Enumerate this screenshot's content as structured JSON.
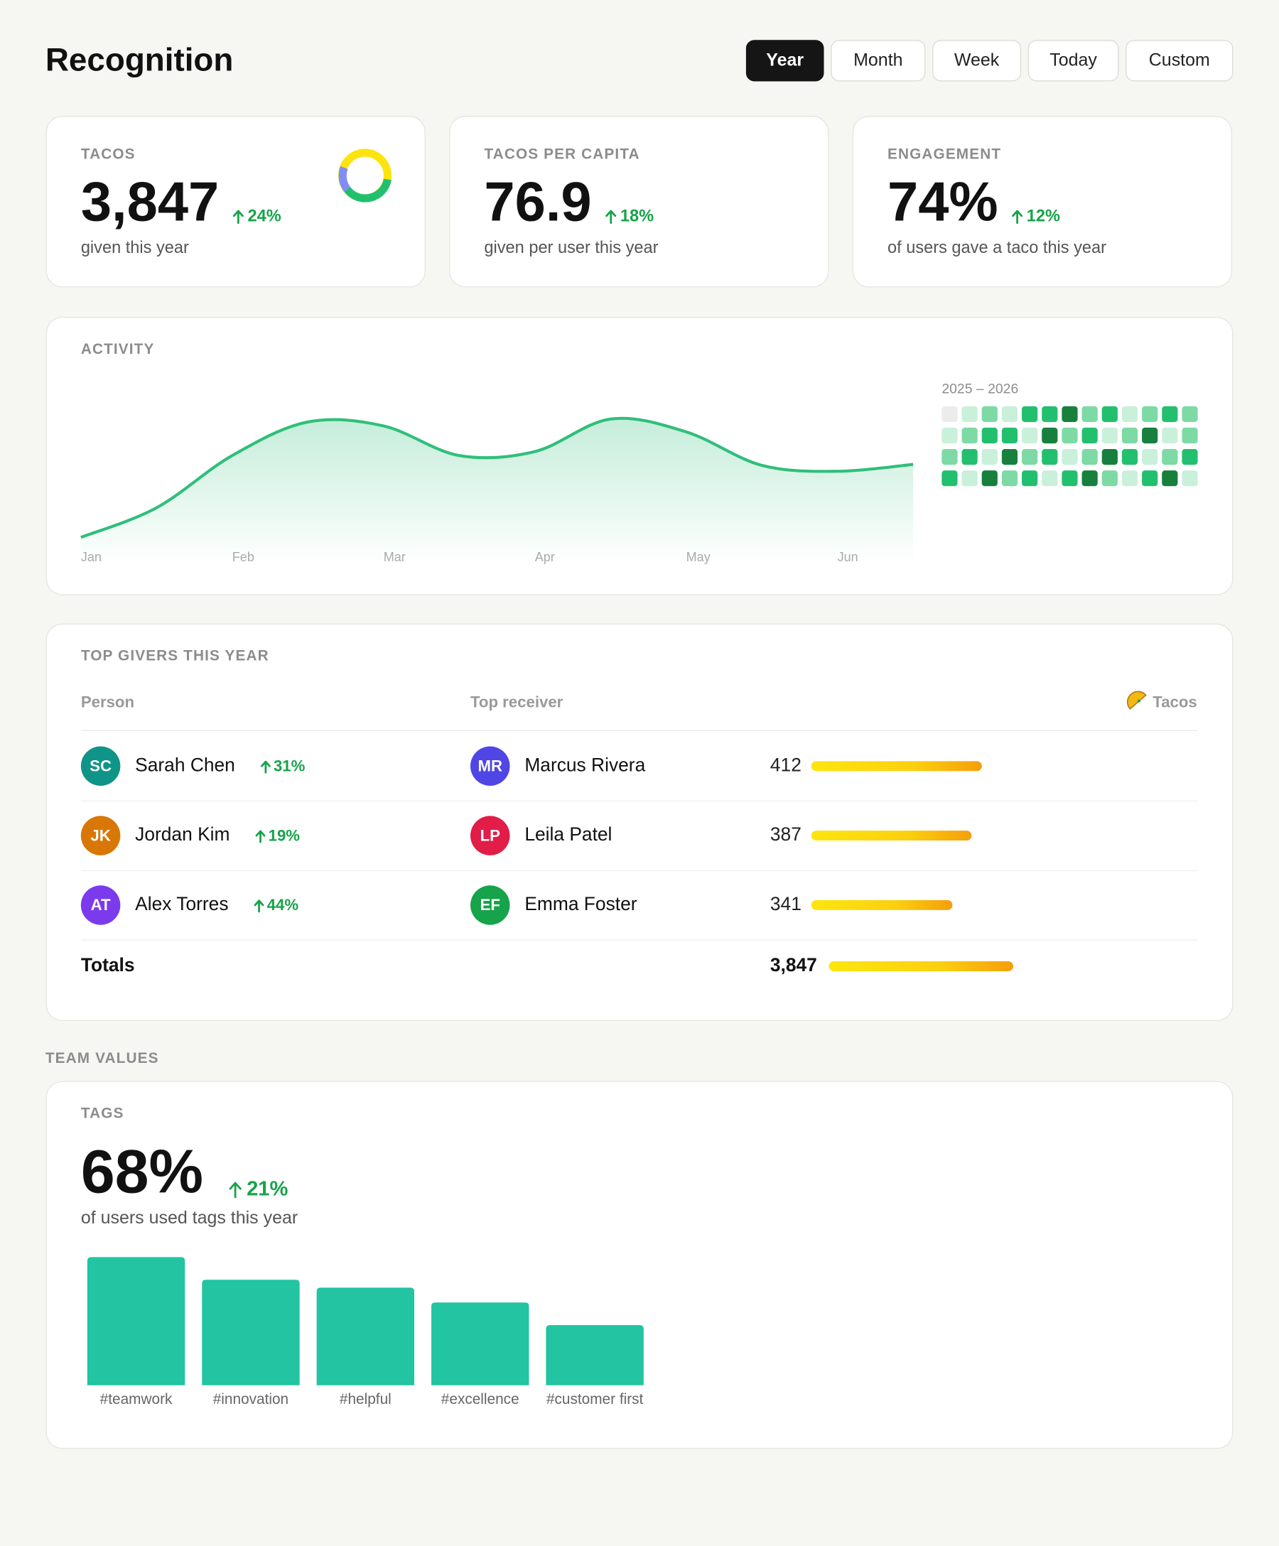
{
  "header": {
    "title": "Recognition",
    "periods": [
      "Year",
      "Month",
      "Week",
      "Today",
      "Custom"
    ],
    "selected": 0
  },
  "stats": [
    {
      "label": "TACOS",
      "value": "3,847",
      "change": "24%",
      "caption": "given this year"
    },
    {
      "label": "TACOS PER CAPITA",
      "value": "76.9",
      "change": "18%",
      "caption": "given per user this year"
    },
    {
      "label": "ENGAGEMENT",
      "value": "74%",
      "change": "12%",
      "caption": "of users gave a taco this year"
    }
  ],
  "heatmap": {
    "title": "2025 – 2026",
    "colors": [
      "#ececec",
      "#c9f0da",
      "#7ddaa5",
      "#22c06e",
      "#17803d"
    ],
    "levels": [
      [
        0,
        1,
        2,
        1,
        3,
        3,
        4,
        2,
        3,
        1,
        2,
        3,
        2
      ],
      [
        1,
        2,
        3,
        3,
        1,
        4,
        2,
        3,
        1,
        2,
        4,
        1,
        2
      ],
      [
        2,
        3,
        1,
        4,
        2,
        3,
        1,
        2,
        4,
        3,
        1,
        2,
        3
      ],
      [
        3,
        1,
        4,
        2,
        3,
        1,
        3,
        4,
        2,
        1,
        3,
        4,
        1
      ]
    ]
  },
  "top_givers": {
    "title": "TOP GIVERS THIS YEAR",
    "columns": [
      "Person",
      "Top receiver",
      "Tacos"
    ],
    "rows": [
      {
        "initials": "SC",
        "name": "Sarah Chen",
        "color": "#0f9488",
        "change": "31%",
        "receiver_initials": "MR",
        "receiver": "Marcus Rivera",
        "receiver_color": "#4f46e5",
        "tacos": 412
      },
      {
        "initials": "JK",
        "name": "Jordan Kim",
        "color": "#d97706",
        "change": "19%",
        "receiver_initials": "LP",
        "receiver": "Leila Patel",
        "receiver_color": "#e11d48",
        "tacos": 387
      },
      {
        "initials": "AT",
        "name": "Alex Torres",
        "color": "#7c3aed",
        "change": "44%",
        "receiver_initials": "EF",
        "receiver": "Emma Foster",
        "receiver_color": "#16a34a",
        "tacos": 341
      }
    ],
    "totals": {
      "label": "Totals",
      "tacos": {
        "value": 3847,
        "label": "3,847"
      }
    }
  },
  "team_values": {
    "heading": "TEAM VALUES",
    "label": "TAGS",
    "value": "68%",
    "change": "21%",
    "caption": "of users used tags this year"
  },
  "chart_data": [
    {
      "type": "area",
      "title": "ACTIVITY",
      "color": "#2fbf7a",
      "categories": [
        "Jan",
        null,
        "Feb",
        null,
        "Mar",
        null,
        "Apr",
        null,
        "May",
        null,
        "Jun",
        null
      ],
      "values": [
        27,
        57,
        110,
        144,
        140,
        110,
        114,
        147,
        134,
        100,
        94,
        101
      ],
      "ylim": [
        0,
        190
      ]
    },
    {
      "type": "bar",
      "color": "#22c4a1",
      "categories": [
        "#teamwork",
        "#innovation",
        "#helpful",
        "#excellence",
        "#customer first"
      ],
      "values": [
        130,
        107,
        99,
        84,
        61
      ],
      "ylim": [
        0,
        130
      ]
    }
  ]
}
